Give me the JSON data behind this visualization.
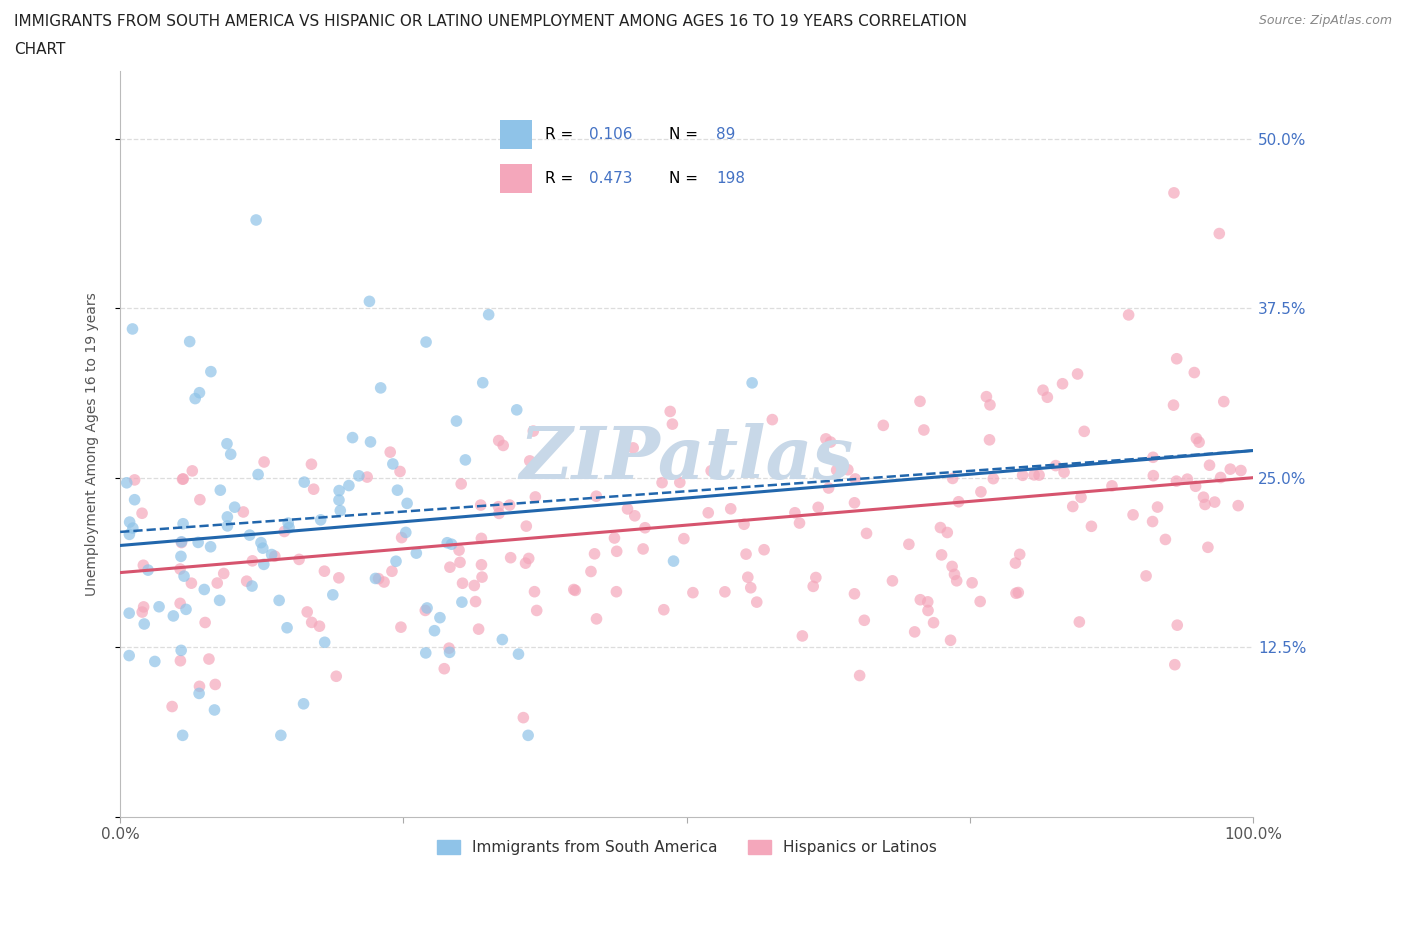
{
  "title_line1": "IMMIGRANTS FROM SOUTH AMERICA VS HISPANIC OR LATINO UNEMPLOYMENT AMONG AGES 16 TO 19 YEARS CORRELATION",
  "title_line2": "CHART",
  "source": "Source: ZipAtlas.com",
  "ylabel": "Unemployment Among Ages 16 to 19 years",
  "xlim": [
    0,
    100
  ],
  "ylim": [
    0,
    55
  ],
  "yticks": [
    0,
    12.5,
    25.0,
    37.5,
    50.0
  ],
  "ytick_labels": [
    "",
    "12.5%",
    "25.0%",
    "37.5%",
    "50.0%"
  ],
  "xtick_labels": [
    "0.0%",
    "",
    "",
    "",
    "100.0%"
  ],
  "blue_R": 0.106,
  "blue_N": 89,
  "pink_R": 0.473,
  "pink_N": 198,
  "blue_color": "#8fc3e8",
  "pink_color": "#f4a7bb",
  "blue_line_color": "#2166ac",
  "pink_line_color": "#d6546e",
  "tick_label_color": "#4472c4",
  "ylabel_color": "#555555",
  "watermark_color": "#c8d8e8",
  "legend_label_blue": "Immigrants from South America",
  "legend_label_pink": "Hispanics or Latinos",
  "legend_R_N_color": "#4472c4",
  "grid_color": "#dddddd",
  "title_fontsize": 11,
  "tick_fontsize": 11,
  "legend_fontsize": 11
}
